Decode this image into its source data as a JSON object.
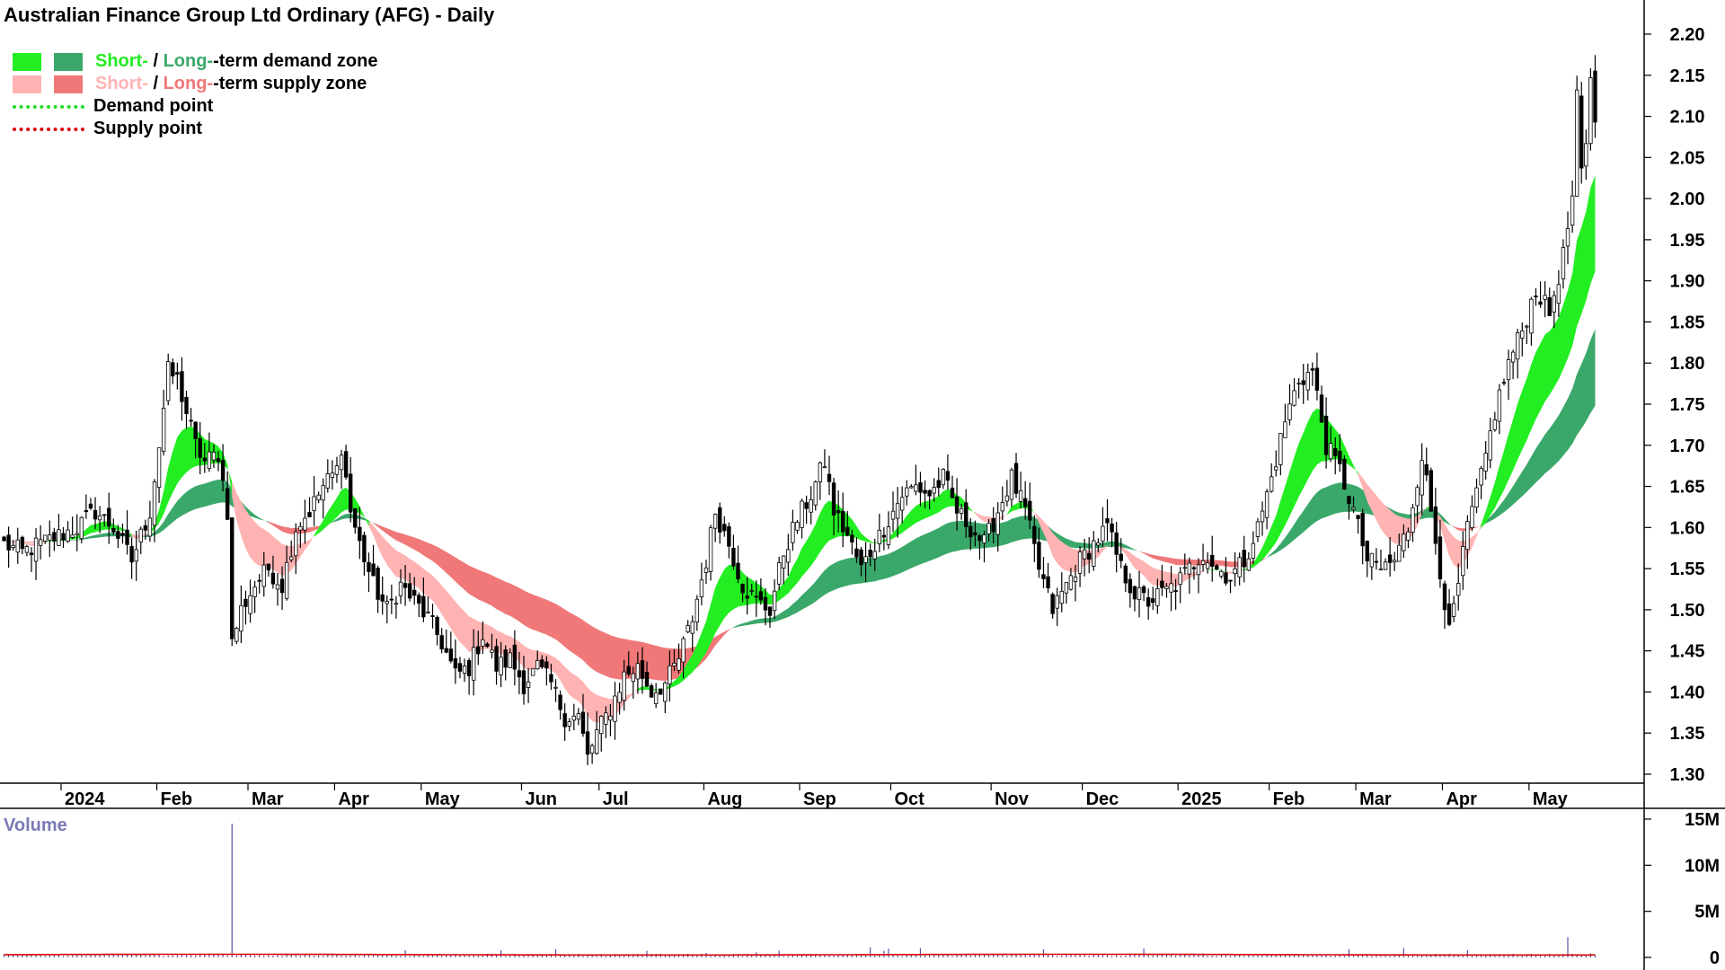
{
  "title": "Australian Finance Group Ltd Ordinary (AFG) - Daily",
  "colors": {
    "short_demand": "#22ee22",
    "long_demand": "#3aa86a",
    "short_supply": "#ffb3b3",
    "long_supply": "#f07878",
    "overlap_zone": "#ff7733",
    "demand_point": "#22dd22",
    "supply_point": "#dd0000",
    "volume_bar": "#5555aa",
    "volume_line": "#dd0000"
  },
  "legend": {
    "demand": {
      "short": "Short-",
      "sep": " / ",
      "long": "Long-",
      "rest": "-term demand zone"
    },
    "supply": {
      "short": "Short-",
      "sep": " / ",
      "long": "Long-",
      "rest": "-term supply zone"
    },
    "demand_point": "Demand point",
    "supply_point": "Supply point"
  },
  "volume_label": "Volume",
  "chart_data": {
    "type": "candlestick",
    "title": "Australian Finance Group Ltd Ordinary (AFG) - Daily",
    "price_axis": {
      "min": 1.3,
      "max": 2.2,
      "ticks": [
        "1.30",
        "1.35",
        "1.40",
        "1.45",
        "1.50",
        "1.55",
        "1.60",
        "1.65",
        "1.70",
        "1.75",
        "1.80",
        "1.85",
        "1.90",
        "1.95",
        "2.00",
        "2.05",
        "2.10",
        "2.15",
        "2.20"
      ]
    },
    "volume_axis": {
      "min": 0,
      "max": 15000000,
      "ticks": [
        {
          "v": 0,
          "label": "0"
        },
        {
          "v": 5000000,
          "label": "5M"
        },
        {
          "v": 10000000,
          "label": "10M"
        },
        {
          "v": 15000000,
          "label": "15M"
        }
      ]
    },
    "x_axis": {
      "months": [
        {
          "label": "2024",
          "i": 13
        },
        {
          "label": "Feb",
          "i": 34
        },
        {
          "label": "Mar",
          "i": 54
        },
        {
          "label": "Apr",
          "i": 73
        },
        {
          "label": "May",
          "i": 92
        },
        {
          "label": "Jun",
          "i": 114
        },
        {
          "label": "Jul",
          "i": 131
        },
        {
          "label": "Aug",
          "i": 154
        },
        {
          "label": "Sep",
          "i": 175
        },
        {
          "label": "Oct",
          "i": 195
        },
        {
          "label": "Nov",
          "i": 217
        },
        {
          "label": "Dec",
          "i": 237
        },
        {
          "label": "2025",
          "i": 258
        },
        {
          "label": "Feb",
          "i": 278
        },
        {
          "label": "Mar",
          "i": 297
        },
        {
          "label": "Apr",
          "i": 316
        },
        {
          "label": "May",
          "i": 335
        }
      ]
    },
    "trading_days": 350,
    "close_anchors": [
      [
        0,
        1.58
      ],
      [
        4,
        1.57
      ],
      [
        8,
        1.58
      ],
      [
        12,
        1.59
      ],
      [
        16,
        1.6
      ],
      [
        20,
        1.62
      ],
      [
        24,
        1.6
      ],
      [
        28,
        1.56
      ],
      [
        32,
        1.62
      ],
      [
        34,
        1.7
      ],
      [
        36,
        1.79
      ],
      [
        38,
        1.78
      ],
      [
        40,
        1.74
      ],
      [
        42,
        1.7
      ],
      [
        44,
        1.68
      ],
      [
        47,
        1.69
      ],
      [
        49,
        1.62
      ],
      [
        50,
        1.46
      ],
      [
        52,
        1.5
      ],
      [
        55,
        1.53
      ],
      [
        58,
        1.55
      ],
      [
        61,
        1.53
      ],
      [
        64,
        1.6
      ],
      [
        67,
        1.62
      ],
      [
        70,
        1.65
      ],
      [
        73,
        1.67
      ],
      [
        74,
        1.7
      ],
      [
        76,
        1.62
      ],
      [
        78,
        1.58
      ],
      [
        81,
        1.53
      ],
      [
        84,
        1.5
      ],
      [
        87,
        1.53
      ],
      [
        90,
        1.51
      ],
      [
        93,
        1.49
      ],
      [
        96,
        1.46
      ],
      [
        99,
        1.42
      ],
      [
        102,
        1.43
      ],
      [
        105,
        1.47
      ],
      [
        108,
        1.43
      ],
      [
        111,
        1.44
      ],
      [
        114,
        1.41
      ],
      [
        117,
        1.43
      ],
      [
        120,
        1.41
      ],
      [
        123,
        1.37
      ],
      [
        126,
        1.37
      ],
      [
        128,
        1.32
      ],
      [
        130,
        1.35
      ],
      [
        133,
        1.38
      ],
      [
        136,
        1.42
      ],
      [
        139,
        1.43
      ],
      [
        142,
        1.4
      ],
      [
        145,
        1.41
      ],
      [
        148,
        1.44
      ],
      [
        151,
        1.49
      ],
      [
        154,
        1.56
      ],
      [
        156,
        1.62
      ],
      [
        159,
        1.58
      ],
      [
        162,
        1.53
      ],
      [
        165,
        1.51
      ],
      [
        168,
        1.5
      ],
      [
        171,
        1.57
      ],
      [
        174,
        1.61
      ],
      [
        177,
        1.64
      ],
      [
        180,
        1.68
      ],
      [
        182,
        1.62
      ],
      [
        185,
        1.59
      ],
      [
        188,
        1.55
      ],
      [
        191,
        1.58
      ],
      [
        194,
        1.61
      ],
      [
        197,
        1.64
      ],
      [
        200,
        1.65
      ],
      [
        203,
        1.64
      ],
      [
        206,
        1.66
      ],
      [
        209,
        1.62
      ],
      [
        212,
        1.6
      ],
      [
        215,
        1.58
      ],
      [
        218,
        1.62
      ],
      [
        221,
        1.66
      ],
      [
        224,
        1.62
      ],
      [
        227,
        1.55
      ],
      [
        230,
        1.5
      ],
      [
        233,
        1.53
      ],
      [
        236,
        1.56
      ],
      [
        239,
        1.58
      ],
      [
        242,
        1.6
      ],
      [
        245,
        1.55
      ],
      [
        248,
        1.52
      ],
      [
        251,
        1.51
      ],
      [
        254,
        1.52
      ],
      [
        257,
        1.53
      ],
      [
        260,
        1.55
      ],
      [
        263,
        1.57
      ],
      [
        266,
        1.55
      ],
      [
        269,
        1.54
      ],
      [
        272,
        1.56
      ],
      [
        275,
        1.6
      ],
      [
        278,
        1.66
      ],
      [
        281,
        1.73
      ],
      [
        284,
        1.78
      ],
      [
        287,
        1.79
      ],
      [
        290,
        1.7
      ],
      [
        293,
        1.67
      ],
      [
        296,
        1.62
      ],
      [
        299,
        1.56
      ],
      [
        302,
        1.55
      ],
      [
        305,
        1.56
      ],
      [
        308,
        1.6
      ],
      [
        311,
        1.69
      ],
      [
        313,
        1.62
      ],
      [
        315,
        1.55
      ],
      [
        317,
        1.47
      ],
      [
        319,
        1.53
      ],
      [
        321,
        1.6
      ],
      [
        324,
        1.66
      ],
      [
        327,
        1.74
      ],
      [
        330,
        1.8
      ],
      [
        333,
        1.84
      ],
      [
        336,
        1.89
      ],
      [
        339,
        1.86
      ],
      [
        342,
        1.93
      ],
      [
        344,
        2.0
      ],
      [
        345,
        2.12
      ],
      [
        346,
        2.03
      ],
      [
        347,
        2.06
      ],
      [
        348,
        2.15
      ],
      [
        349,
        2.1
      ]
    ],
    "series": [
      {
        "name": "Short-term demand zone"
      },
      {
        "name": "Long-term demand zone"
      },
      {
        "name": "Short-term supply zone"
      },
      {
        "name": "Long-term supply zone"
      },
      {
        "name": "Volume"
      }
    ]
  }
}
